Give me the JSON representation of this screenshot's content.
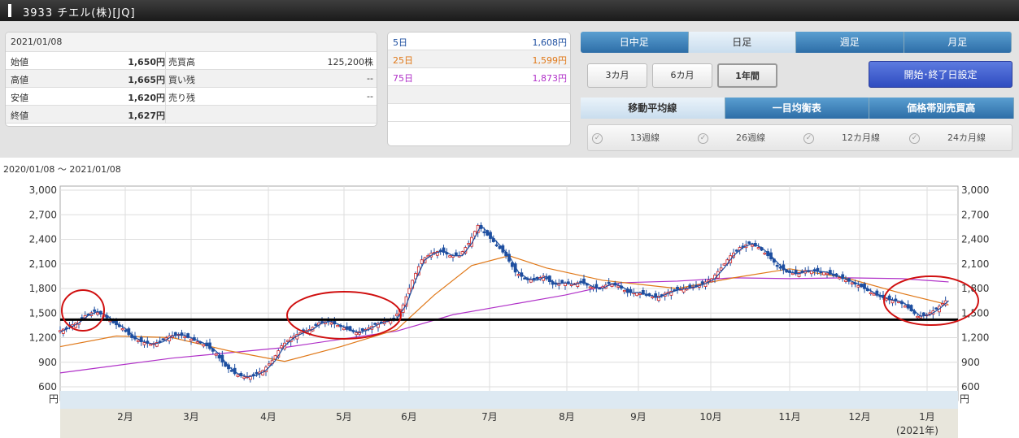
{
  "header": {
    "title": "3933 チエル(株)[JQ]"
  },
  "quote": {
    "date": "2021/01/08",
    "rows": [
      {
        "l1": "始値",
        "v1": "1,650円",
        "l2": "売買高",
        "v2": "125,200株"
      },
      {
        "l1": "高値",
        "v1": "1,665円",
        "l2": "買い残",
        "v2": "--"
      },
      {
        "l1": "安値",
        "v1": "1,620円",
        "l2": "売り残",
        "v2": "--"
      },
      {
        "l1": "終値",
        "v1": "1,627円",
        "l2": "",
        "v2": ""
      }
    ]
  },
  "moving_averages": [
    {
      "label": "5日",
      "value": "1,608円",
      "color": "#1e4fa0"
    },
    {
      "label": "25日",
      "value": "1,599円",
      "color": "#e07818"
    },
    {
      "label": "75日",
      "value": "1,873円",
      "color": "#b030c8"
    }
  ],
  "period_tabs": [
    "日中足",
    "日足",
    "週足",
    "月足"
  ],
  "period_active": 1,
  "range_buttons": [
    "3カ月",
    "6カ月",
    "1年間"
  ],
  "range_active": 2,
  "set_date_button": "開始･終了日設定",
  "indicator_tabs": [
    "移動平均線",
    "一目均衡表",
    "価格帯別売買高"
  ],
  "ma_lines": [
    "13週線",
    "26週線",
    "12カ月線",
    "24カ月線"
  ],
  "range_text": "2020/01/08 ～ 2021/01/08",
  "chart_data": {
    "type": "candlestick",
    "y_ticks": [
      "3,000",
      "2,700",
      "2,400",
      "2,100",
      "1,800",
      "1,500",
      "1,200",
      "900",
      "600"
    ],
    "y_unit": "円",
    "ylim": [
      600,
      3000
    ],
    "x_labels": [
      "2月",
      "3月",
      "4月",
      "5月",
      "6月",
      "7月",
      "8月",
      "9月",
      "10月",
      "11月",
      "12月",
      "1月"
    ],
    "x_year_label": "(2021年)",
    "close_points": [
      [
        0,
        1270
      ],
      [
        5,
        1320
      ],
      [
        10,
        1380
      ],
      [
        15,
        1470
      ],
      [
        20,
        1520
      ],
      [
        25,
        1470
      ],
      [
        30,
        1380
      ],
      [
        35,
        1310
      ],
      [
        40,
        1200
      ],
      [
        45,
        1150
      ],
      [
        50,
        1120
      ],
      [
        55,
        1150
      ],
      [
        60,
        1220
      ],
      [
        65,
        1240
      ],
      [
        70,
        1200
      ],
      [
        75,
        1150
      ],
      [
        80,
        1100
      ],
      [
        85,
        1000
      ],
      [
        90,
        850
      ],
      [
        95,
        760
      ],
      [
        100,
        720
      ],
      [
        105,
        740
      ],
      [
        110,
        800
      ],
      [
        115,
        920
      ],
      [
        120,
        1100
      ],
      [
        125,
        1200
      ],
      [
        130,
        1260
      ],
      [
        135,
        1300
      ],
      [
        140,
        1380
      ],
      [
        145,
        1400
      ],
      [
        150,
        1350
      ],
      [
        155,
        1300
      ],
      [
        160,
        1260
      ],
      [
        165,
        1300
      ],
      [
        170,
        1360
      ],
      [
        175,
        1400
      ],
      [
        180,
        1430
      ],
      [
        185,
        1600
      ],
      [
        190,
        1900
      ],
      [
        195,
        2150
      ],
      [
        200,
        2230
      ],
      [
        205,
        2260
      ],
      [
        210,
        2200
      ],
      [
        215,
        2200
      ],
      [
        220,
        2350
      ],
      [
        225,
        2570
      ],
      [
        230,
        2450
      ],
      [
        235,
        2330
      ],
      [
        240,
        2200
      ],
      [
        245,
        2000
      ],
      [
        250,
        1920
      ],
      [
        255,
        1900
      ],
      [
        260,
        1950
      ],
      [
        265,
        1850
      ],
      [
        270,
        1870
      ],
      [
        275,
        1850
      ],
      [
        280,
        1880
      ],
      [
        285,
        1820
      ],
      [
        290,
        1800
      ],
      [
        295,
        1860
      ],
      [
        300,
        1830
      ],
      [
        305,
        1750
      ],
      [
        310,
        1750
      ],
      [
        315,
        1720
      ],
      [
        320,
        1690
      ],
      [
        325,
        1740
      ],
      [
        330,
        1780
      ],
      [
        335,
        1800
      ],
      [
        340,
        1820
      ],
      [
        345,
        1860
      ],
      [
        350,
        1920
      ],
      [
        355,
        2050
      ],
      [
        360,
        2200
      ],
      [
        365,
        2300
      ],
      [
        370,
        2350
      ],
      [
        375,
        2300
      ],
      [
        380,
        2200
      ],
      [
        385,
        2080
      ],
      [
        390,
        2000
      ],
      [
        395,
        1980
      ],
      [
        400,
        2020
      ],
      [
        405,
        2010
      ],
      [
        410,
        2000
      ],
      [
        415,
        1960
      ],
      [
        420,
        1920
      ],
      [
        425,
        1870
      ],
      [
        430,
        1820
      ],
      [
        435,
        1750
      ],
      [
        440,
        1700
      ],
      [
        445,
        1660
      ],
      [
        450,
        1640
      ],
      [
        455,
        1560
      ],
      [
        460,
        1460
      ],
      [
        465,
        1480
      ],
      [
        470,
        1550
      ],
      [
        475,
        1650
      ]
    ],
    "ma25_points": [
      [
        0,
        1090
      ],
      [
        30,
        1220
      ],
      [
        60,
        1200
      ],
      [
        90,
        1040
      ],
      [
        120,
        910
      ],
      [
        150,
        1090
      ],
      [
        180,
        1300
      ],
      [
        200,
        1720
      ],
      [
        220,
        2080
      ],
      [
        240,
        2200
      ],
      [
        260,
        2050
      ],
      [
        290,
        1900
      ],
      [
        330,
        1800
      ],
      [
        360,
        1930
      ],
      [
        390,
        2040
      ],
      [
        420,
        1930
      ],
      [
        450,
        1740
      ],
      [
        475,
        1600
      ]
    ],
    "ma75_points": [
      [
        0,
        770
      ],
      [
        60,
        950
      ],
      [
        120,
        1080
      ],
      [
        180,
        1280
      ],
      [
        210,
        1480
      ],
      [
        240,
        1600
      ],
      [
        270,
        1720
      ],
      [
        300,
        1870
      ],
      [
        330,
        1890
      ],
      [
        360,
        1930
      ],
      [
        390,
        1920
      ],
      [
        420,
        1930
      ],
      [
        450,
        1920
      ],
      [
        475,
        1880
      ]
    ],
    "horizontal_line": 1420
  }
}
